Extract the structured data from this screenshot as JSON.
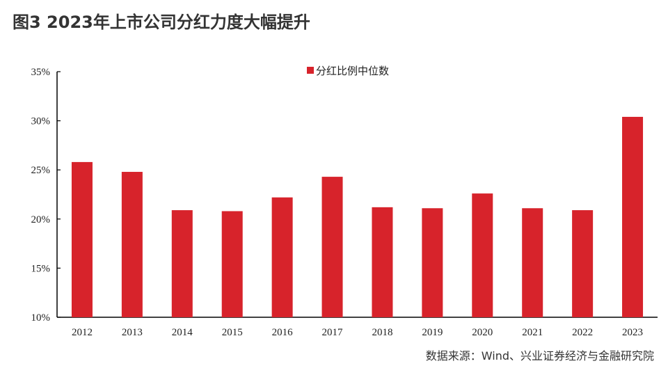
{
  "title": "图3  2023年上市公司分红力度大幅提升",
  "source": "数据来源：Wind、兴业证券经济与金融研究院",
  "chart_data": {
    "type": "bar",
    "title": "图3  2023年上市公司分红力度大幅提升",
    "categories": [
      "2012",
      "2013",
      "2014",
      "2015",
      "2016",
      "2017",
      "2018",
      "2019",
      "2020",
      "2021",
      "2022",
      "2023"
    ],
    "series": [
      {
        "name": "分红比例中位数",
        "values": [
          25.8,
          24.8,
          20.9,
          20.8,
          22.2,
          24.3,
          21.2,
          21.1,
          22.6,
          21.1,
          20.9,
          30.4
        ],
        "color": "#d7232b"
      }
    ],
    "ylim": [
      10,
      35
    ],
    "yticks": [
      10,
      15,
      20,
      25,
      30,
      35
    ],
    "ytick_labels": [
      "10%",
      "15%",
      "20%",
      "25%",
      "30%",
      "35%"
    ],
    "xlabel": "",
    "ylabel": "",
    "legend_position": "top-center",
    "grid": false
  }
}
